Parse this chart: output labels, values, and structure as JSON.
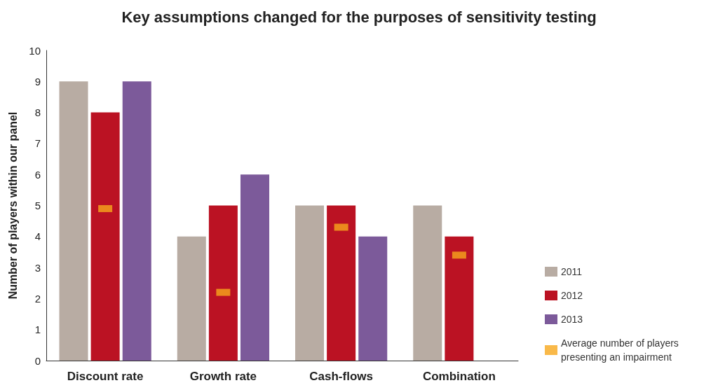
{
  "chart_data": {
    "type": "bar",
    "title": "Key assumptions changed for the purposes of sensitivity testing",
    "ylabel": "Number of players within our panel",
    "categories": [
      "Discount rate",
      "Growth rate",
      "Cash-flows",
      "Combination"
    ],
    "series": [
      {
        "name": "2011",
        "color": "#b8aca3",
        "values": [
          9,
          4,
          5,
          5
        ]
      },
      {
        "name": "2012",
        "color": "#bb1223",
        "values": [
          8,
          5,
          5,
          4
        ]
      },
      {
        "name": "2013",
        "color": "#7c5a9a",
        "values": [
          9,
          6,
          4,
          0
        ]
      },
      {
        "name": "Average number of players presenting an impairment",
        "type": "scatter",
        "marker": "square",
        "color": "#f7a71c",
        "x": [
          "Discount rate",
          "Growth rate",
          "Cash-flows",
          "Combination"
        ],
        "values": [
          4.9,
          2.2,
          4.3,
          3.4
        ]
      }
    ],
    "ylim": [
      0,
      10
    ],
    "yticks": [
      0,
      1,
      2,
      3,
      4,
      5,
      6,
      7,
      8,
      9,
      10
    ],
    "grid": false,
    "legend": "bottom right"
  }
}
